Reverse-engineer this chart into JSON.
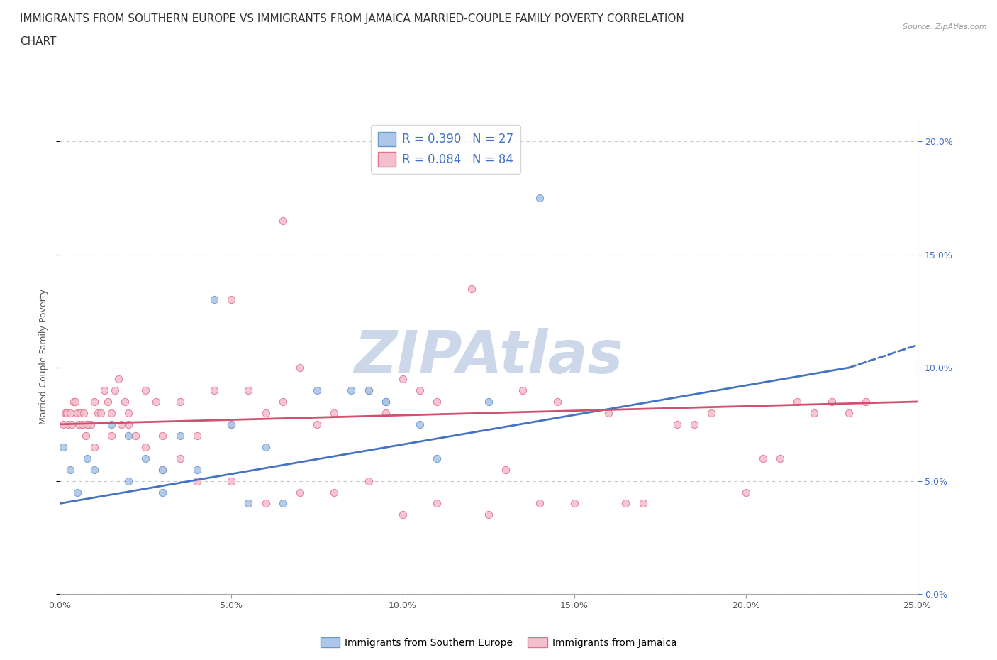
{
  "title_line1": "IMMIGRANTS FROM SOUTHERN EUROPE VS IMMIGRANTS FROM JAMAICA MARRIED-COUPLE FAMILY POVERTY CORRELATION",
  "title_line2": "CHART",
  "source": "Source: ZipAtlas.com",
  "ylabel": "Married-Couple Family Poverty",
  "xlabel": "",
  "watermark": "ZIPAtlas",
  "series": [
    {
      "name": "Immigrants from Southern Europe",
      "color": "#aec6e8",
      "edge_color": "#6699cc",
      "R": 0.39,
      "N": 27,
      "x": [
        0.1,
        0.3,
        0.5,
        0.8,
        1.0,
        1.5,
        2.0,
        2.5,
        3.0,
        3.5,
        4.0,
        5.0,
        6.0,
        7.5,
        8.5,
        9.5,
        10.5,
        12.5,
        14.0,
        9.0,
        9.5,
        4.5,
        2.0,
        3.0,
        5.5,
        6.5,
        11.0
      ],
      "y": [
        6.5,
        5.5,
        4.5,
        6.0,
        5.5,
        7.5,
        7.0,
        6.0,
        5.5,
        7.0,
        5.5,
        7.5,
        6.5,
        9.0,
        9.0,
        8.5,
        7.5,
        8.5,
        17.5,
        9.0,
        8.5,
        13.0,
        5.0,
        4.5,
        4.0,
        4.0,
        6.0
      ]
    },
    {
      "name": "Immigrants from Jamaica",
      "color": "#f5c0ce",
      "edge_color": "#e07090",
      "R": 0.084,
      "N": 84,
      "x": [
        0.1,
        0.15,
        0.2,
        0.25,
        0.3,
        0.35,
        0.4,
        0.45,
        0.5,
        0.55,
        0.6,
        0.65,
        0.7,
        0.75,
        0.8,
        0.9,
        1.0,
        1.1,
        1.2,
        1.3,
        1.4,
        1.5,
        1.6,
        1.7,
        1.8,
        1.9,
        2.0,
        2.2,
        2.5,
        2.8,
        3.0,
        3.5,
        4.0,
        4.5,
        5.0,
        5.5,
        6.0,
        6.5,
        7.0,
        7.5,
        8.0,
        9.0,
        9.5,
        10.0,
        11.0,
        12.0,
        13.5,
        14.5,
        16.0,
        18.0,
        20.0,
        22.0,
        23.5,
        1.0,
        1.5,
        2.0,
        2.5,
        3.0,
        3.5,
        4.0,
        5.0,
        6.0,
        7.0,
        8.0,
        9.0,
        10.0,
        11.0,
        13.0,
        15.0,
        17.0,
        18.5,
        20.5,
        21.5,
        23.0,
        5.0,
        10.5,
        12.5,
        14.0,
        16.5,
        19.0,
        21.0,
        22.5,
        0.8,
        6.5
      ],
      "y": [
        7.5,
        8.0,
        8.0,
        7.5,
        8.0,
        7.5,
        8.5,
        8.5,
        8.0,
        7.5,
        8.0,
        7.5,
        8.0,
        7.0,
        7.5,
        7.5,
        8.5,
        8.0,
        8.0,
        9.0,
        8.5,
        8.0,
        9.0,
        9.5,
        7.5,
        8.5,
        7.5,
        7.0,
        9.0,
        8.5,
        7.0,
        8.5,
        7.0,
        9.0,
        7.5,
        9.0,
        8.0,
        8.5,
        10.0,
        7.5,
        8.0,
        9.0,
        8.0,
        9.5,
        8.5,
        13.5,
        9.0,
        8.5,
        8.0,
        7.5,
        4.5,
        8.0,
        8.5,
        6.5,
        7.0,
        8.0,
        6.5,
        5.5,
        6.0,
        5.0,
        5.0,
        4.0,
        4.5,
        4.5,
        5.0,
        3.5,
        4.0,
        5.5,
        4.0,
        4.0,
        7.5,
        6.0,
        8.5,
        8.0,
        13.0,
        9.0,
        3.5,
        4.0,
        4.0,
        8.0,
        6.0,
        8.5,
        7.5,
        16.5
      ]
    }
  ],
  "xlim": [
    0,
    25
  ],
  "ylim": [
    0,
    21
  ],
  "xticks": [
    0,
    5,
    10,
    15,
    20,
    25
  ],
  "yticks": [
    0,
    5,
    10,
    15,
    20
  ],
  "ytick_labels": [
    "0.0%",
    "5.0%",
    "10.0%",
    "15.0%",
    "20.0%"
  ],
  "xtick_labels": [
    "0.0%",
    "5.0%",
    "10.0%",
    "15.0%",
    "20.0%",
    "25.0%"
  ],
  "blue_line_color": "#4472c4",
  "pink_line_color": "#d05070",
  "legend_R_color": "#4472c4",
  "background_color": "#ffffff",
  "grid_color": "#c8c8c8",
  "watermark_color": "#ccd8ea",
  "title_fontsize": 11,
  "axis_label_fontsize": 9,
  "tick_fontsize": 9,
  "legend_fontsize": 12,
  "watermark_fontsize": 60,
  "blue_line_x_end": 23.0,
  "blue_line_x_dash_end": 25.0,
  "blue_line_y_start": 4.0,
  "blue_line_y_end": 10.0,
  "blue_line_y_dash_end": 11.0,
  "pink_line_y_start": 7.5,
  "pink_line_y_end": 8.5
}
